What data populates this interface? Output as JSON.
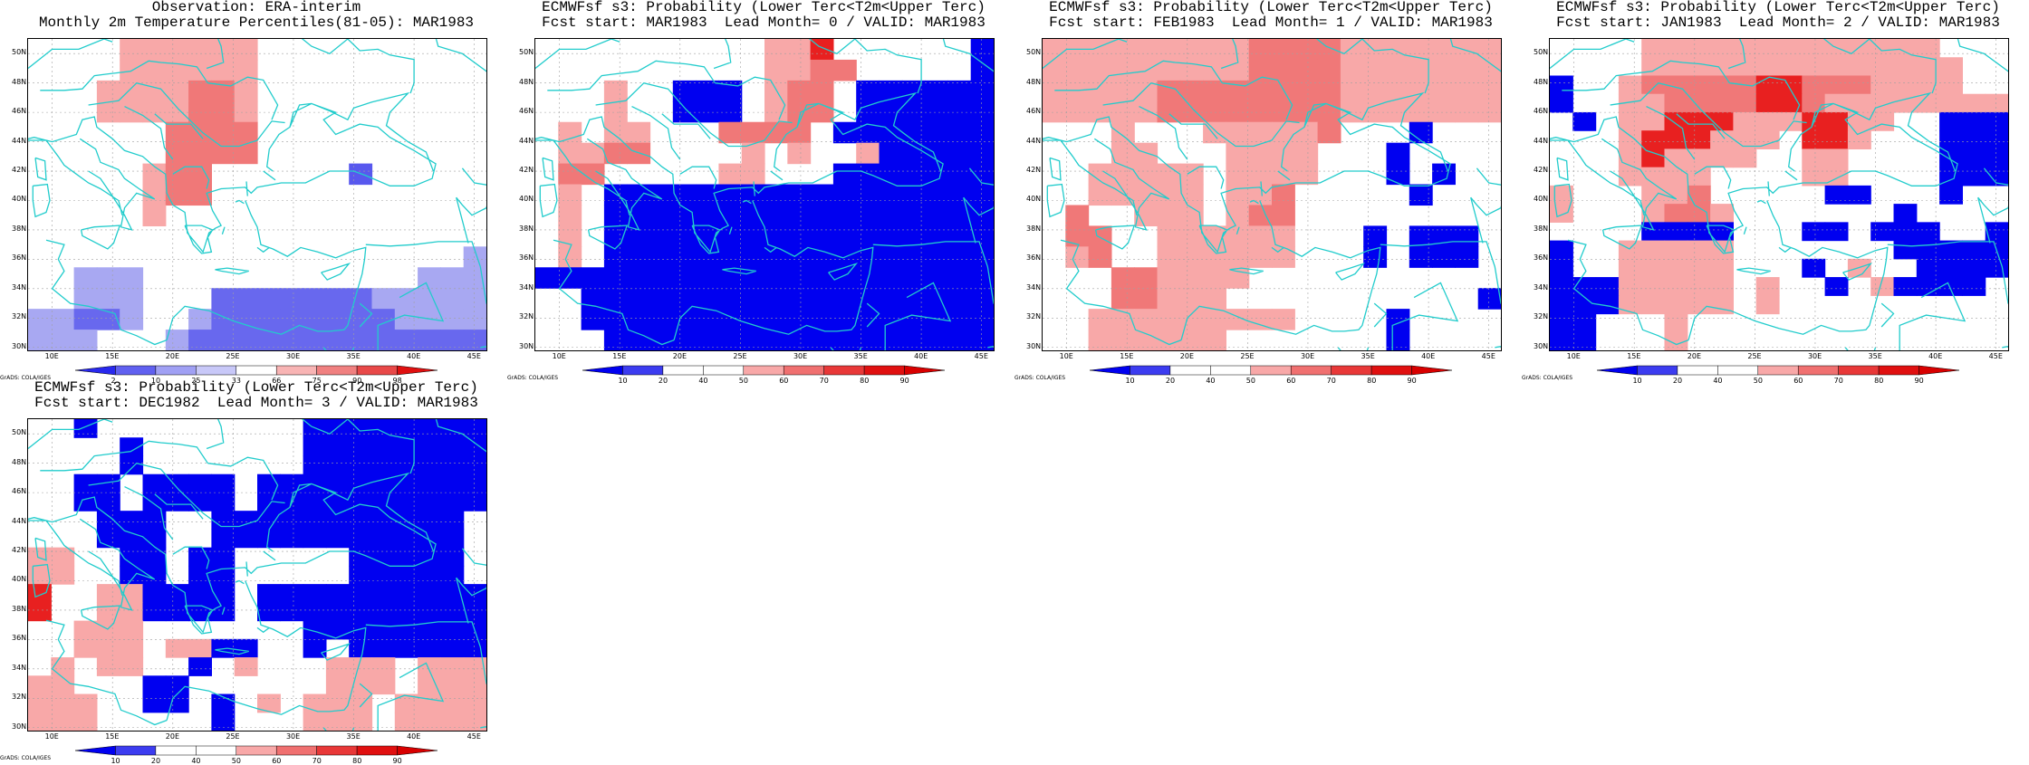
{
  "credit": "GrADS: COLA/IGES",
  "lon_labels": [
    "10E",
    "15E",
    "20E",
    "25E",
    "30E",
    "35E",
    "40E",
    "45E"
  ],
  "lat_labels": [
    "30N",
    "32N",
    "34N",
    "36N",
    "38N",
    "40N",
    "42N",
    "44N",
    "46N",
    "48N",
    "50N"
  ],
  "colors": {
    "coast": "#22cccc",
    "obs_scale": [
      "#2828ee",
      "#6060f0",
      "#a0a0f4",
      "#c8c8f8",
      "#ffffff",
      "#f8b4b4",
      "#f08080",
      "#e84848",
      "#e01010"
    ],
    "prob_scale": [
      "#0000f0",
      "#3c3cf0",
      "#ffffff",
      "#ffffff",
      "#f8a8a8",
      "#f07070",
      "#e83838",
      "#e01010",
      "#d80000"
    ]
  },
  "panels": [
    {
      "title1": "Observation: ERA-interim",
      "title2": "Monthly 2m Temperature Percentiles(81-05): MAR1983",
      "colorbar_labels": [
        "2",
        "10",
        "25",
        "33",
        "66",
        "75",
        "90",
        "98"
      ],
      "colorbar_type": "obs",
      "cells": [
        "....aaaaaa..........",
        "....aaaaaa..........",
        "...aaaabba..........",
        "...aaaabba..........",
        "......bbbb..........",
        "......bbbb..........",
        ".....abb......w.....",
        ".....abb............",
        ".....a..............",
        "....................",
        "...................z",
        "..zzz............zzz",
        "..zzz...yyyyyyyzzzzz",
        "zzyyz..zyyyyyyyyzzzz",
        "zzz...zyyyyyyyyyyyyy"
      ]
    },
    {
      "title1": "ECMWFsf s3: Probability (Lower Terc<T2m<Upper Terc)",
      "title2": "Fcst start: MAR1983  Lead Month= 0 / VALID: MAR1983",
      "colorbar_labels": [
        "10",
        "20",
        "40",
        "50",
        "60",
        "70",
        "80",
        "90"
      ],
      "colorbar_type": "prob",
      "cells": [
        "..........aac......X",
        "..........aabb.....X",
        "...a..XXX.abb.XXXXXX",
        "...a..XXX.abb.XXXXXX",
        ".a.aa...bbbb.XXXXXXX",
        ".aabb....a.a..aXXXXX",
        ".bb.....aa...XXXXXXX",
        ".a.XXXXXXXXXXXXXXXXX",
        ".a.XXXXXXXXXXXXXXXXX",
        ".a.XXXXXXXXXXXXXXXXX",
        ".a.XXXXXXXXXXXXXXXXX",
        "XXXXXXXXXXXXXXXXXXXX",
        "..XXXXXXXXXXXXXXXXXX",
        "..XXXXXXXXXXXXXXXXXX",
        "...XXXXXXXXXXXXXXXXX"
      ]
    },
    {
      "title1": "ECMWFsf s3: Probability (Lower Terc<T2m<Upper Terc)",
      "title2": "Fcst start: FEB1983  Lead Month= 1 / VALID: MAR1983",
      "colorbar_labels": [
        "10",
        "20",
        "40",
        "50",
        "60",
        "70",
        "80",
        "90"
      ],
      "colorbar_type": "prob",
      "cells": [
        "aaaaaaaaabbbbaaaaaaa",
        "aaaaaaaaabbbbaaaaaaa",
        "aaaaabbbbbbbbaaaaaaa",
        "aaaaabbbbbbbbaaaaaaa",
        "...a...aaaaab...X...",
        "...aa...aaaa...X....",
        "..aaaaa.aaaa...X.X..",
        "..aaaaa.aab.....X...",
        ".b..aaa.abb.........",
        ".bb..aaaaaa...X.XXX.",
        ".ab..aaaaaa...X.XXX.",
        "...bbaaaa...........",
        "...bbaaa...........X",
        "..aaaaaaaaa....X....",
        "..aaaaaa.......X...."
      ]
    },
    {
      "title1": "ECMWFsf s3: Probability (Lower Terc<T2m<Upper Terc)",
      "title2": "Fcst start: JAN1983  Lead Month= 2 / VALID: MAR1983",
      "colorbar_labels": [
        "10",
        "20",
        "40",
        "50",
        "60",
        "70",
        "80",
        "90"
      ],
      "colorbar_type": "prob",
      "cells": [
        "....aaaaaaaaaaaaa...",
        "....aaaaaaaaaaaaaa..",
        "X..abbbbbccbbbaaaa..",
        "X..aabbbbccbaaaaaaaa",
        ".X.aacccaaaccaa..XXX",
        "...acccaaa.cca...XXX",
        "...acaaaa..aa....XXX",
        "...aaaa....aa....XXX",
        "a...aab.....XX...X..",
        "a...abba.......X....",
        "....XXXX...XX.XXX..X",
        "X..aaaaa.......XXXXX",
        "X..aaaaa...X.a..XXXX",
        "XXXaaaaa.a..X.aXXXX.",
        "XXXaaaaa.a..........",
        "XX...a..............",
        "XX...a.............."
      ]
    },
    {
      "title1": "ECMWFsf s3: Probability (Lower Terc<T2m<Upper Terc)",
      "title2": "Fcst start: DEC1982  Lead Month= 3 / VALID: MAR1983",
      "colorbar_labels": [
        "10",
        "20",
        "40",
        "50",
        "60",
        "70",
        "80",
        "90"
      ],
      "colorbar_type": "prob",
      "cells": [
        "..X.........XXXXXXXX",
        "....X.......XXXXXXXX",
        "....X.......XXXXXXXX",
        "..XX.XXXX.XXXXXXXXXX",
        "..XX.XXXX.XXXXXXXXXX",
        "...XXX..XXXXXXXXXXX.",
        "...XXX..XXXXXXXXXXX.",
        "aa..XX.XX.....XXXXX.",
        "aa..XX.XX.....XXXXX.",
        "c..aaXXXX.XXXXXXXXXX",
        "c..aaXXXX.XXXXXXXXXX",
        "..aaa.......XXXXXXXX",
        "..aaa.aaXX..X.XXXXXX",
        ".a.aa..X.a...aaa.aaa",
        "aa...XX......aaa.aaa",
        "aaa..XX.X.a.aaa.aaaa",
        "aaa.....X...aaa.aaaa"
      ]
    }
  ]
}
